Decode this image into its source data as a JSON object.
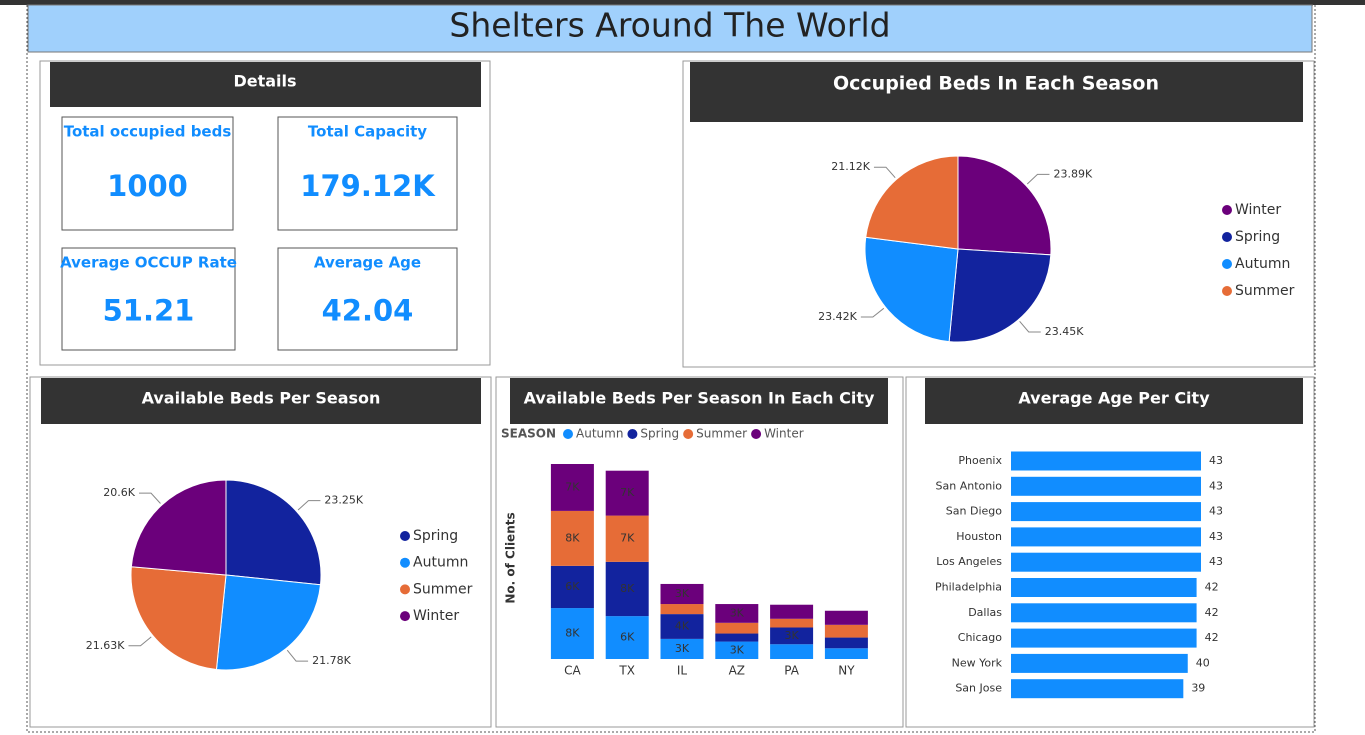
{
  "title": "Shelters Around The World",
  "details": {
    "title": "Details",
    "cards": [
      {
        "label": "Total occupied beds",
        "value": "1000"
      },
      {
        "label": "Total Capacity",
        "value": "179.12K"
      },
      {
        "label": "Average OCCUP Rate",
        "value": "51.21"
      },
      {
        "label": "Average Age",
        "value": "42.04"
      }
    ]
  },
  "chart_data": [
    {
      "type": "pie",
      "title": "Occupied Beds In Each Season",
      "categories": [
        "Winter",
        "Spring",
        "Autumn",
        "Summer"
      ],
      "values": [
        23890,
        23450,
        23420,
        21120
      ],
      "value_labels": [
        "23.89K",
        "23.45K",
        "23.42K",
        "21.12K"
      ],
      "colors": [
        "#6b007b",
        "#12239e",
        "#118dff",
        "#e66c37"
      ],
      "legend": "right"
    },
    {
      "type": "pie",
      "title": "Available Beds Per Season",
      "categories": [
        "Spring",
        "Autumn",
        "Summer",
        "Winter"
      ],
      "values": [
        23250,
        21780,
        21630,
        20600
      ],
      "value_labels": [
        "23.25K",
        "21.78K",
        "21.63K",
        "20.6K"
      ],
      "colors": [
        "#12239e",
        "#118dff",
        "#e66c37",
        "#6b007b"
      ],
      "legend": "right"
    },
    {
      "type": "stacked-bar",
      "title": "Available Beds Per Season In Each City",
      "legend_title": "SEASON",
      "y_label": "No. of Clients",
      "categories": [
        "CA",
        "TX",
        "IL",
        "AZ",
        "PA",
        "NY"
      ],
      "series": [
        {
          "name": "Autumn",
          "color": "#118dff",
          "values": [
            7600,
            6400,
            3000,
            2600,
            2200,
            1600
          ],
          "value_labels": [
            "8K",
            "6K",
            "3K",
            "3K",
            null,
            null
          ]
        },
        {
          "name": "Spring",
          "color": "#12239e",
          "values": [
            6300,
            8100,
            3700,
            1200,
            2500,
            1600
          ],
          "value_labels": [
            "6K",
            "8K",
            "4K",
            null,
            "3K",
            null
          ]
        },
        {
          "name": "Summer",
          "color": "#e66c37",
          "values": [
            8200,
            6900,
            1500,
            1600,
            1300,
            1900
          ],
          "value_labels": [
            "8K",
            "7K",
            null,
            null,
            null,
            null
          ]
        },
        {
          "name": "Winter",
          "color": "#6b007b",
          "values": [
            7000,
            6700,
            3000,
            2800,
            2100,
            2100
          ],
          "value_labels": [
            "7K",
            "7K",
            "3K",
            "3K",
            null,
            null
          ]
        }
      ],
      "legend": "top"
    },
    {
      "type": "hbar",
      "title": "Average Age Per City",
      "categories": [
        "Phoenix",
        "San Antonio",
        "San Diego",
        "Houston",
        "Los Angeles",
        "Philadelphia",
        "Dallas",
        "Chicago",
        "New York",
        "San Jose"
      ],
      "values": [
        43,
        43,
        43,
        43,
        43,
        42,
        42,
        42,
        40,
        39
      ],
      "color": "#118dff"
    }
  ]
}
